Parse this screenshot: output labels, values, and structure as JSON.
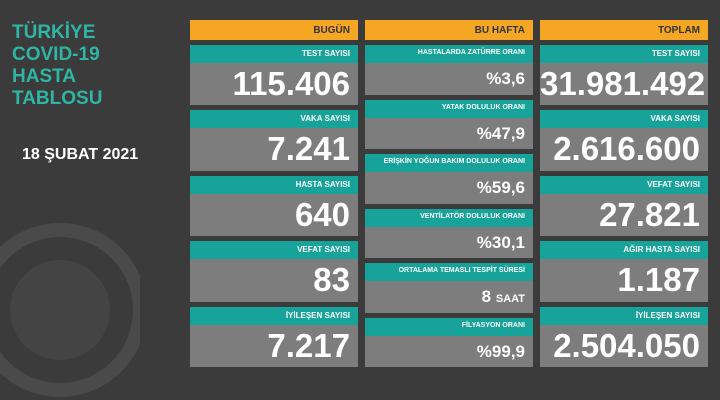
{
  "title": [
    "TÜRKİYE",
    "COVID-19",
    "HASTA",
    "TABLOSU"
  ],
  "date": "18 ŞUBAT 2021",
  "columns": [
    {
      "header": "BUGÜN",
      "rows": [
        {
          "label": "TEST SAYISI",
          "value": "115.406"
        },
        {
          "label": "VAKA SAYISI",
          "value": "7.241"
        },
        {
          "label": "HASTA SAYISI",
          "value": "640"
        },
        {
          "label": "VEFAT SAYISI",
          "value": "83"
        },
        {
          "label": "İYİLEŞEN SAYISI",
          "value": "7.217"
        }
      ]
    },
    {
      "header": "BU HAFTA",
      "rows": [
        {
          "label": "HASTALARDA ZATÜRRE ORANI",
          "value": "%3,6"
        },
        {
          "label": "YATAK DOLULUK ORANI",
          "value": "%47,9"
        },
        {
          "label": "ERİŞKİN YOĞUN BAKIM DOLULUK ORANI",
          "value": "%59,6"
        },
        {
          "label": "VENTİLATÖR DOLULUK ORANI",
          "value": "%30,1"
        },
        {
          "label": "ORTALAMA TEMASLI TESPİT SÜRESİ",
          "value": "8",
          "unit": "SAAT"
        },
        {
          "label": "FİLYASYON ORANI",
          "value": "%99,9"
        }
      ]
    },
    {
      "header": "TOPLAM",
      "rows": [
        {
          "label": "TEST SAYISI",
          "value": "31.981.492"
        },
        {
          "label": "VAKA SAYISI",
          "value": "2.616.600"
        },
        {
          "label": "VEFAT SAYISI",
          "value": "27.821"
        },
        {
          "label": "AĞIR HASTA SAYISI",
          "value": "1.187"
        },
        {
          "label": "İYİLEŞEN SAYISI",
          "value": "2.504.050"
        }
      ]
    }
  ]
}
